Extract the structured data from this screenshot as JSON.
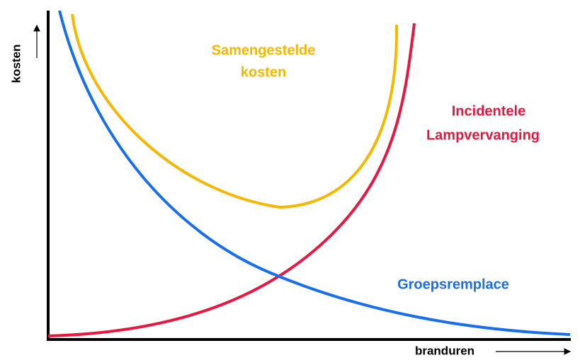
{
  "axes": {
    "x_label": "branduren",
    "y_label": "kosten"
  },
  "curves": [
    {
      "label_lines": [
        "Samengestelde",
        "kosten"
      ]
    },
    {
      "label_lines": [
        "Incidentele",
        "Lampvervanging"
      ]
    },
    {
      "label_lines": [
        "Groepsremplace"
      ]
    }
  ]
}
